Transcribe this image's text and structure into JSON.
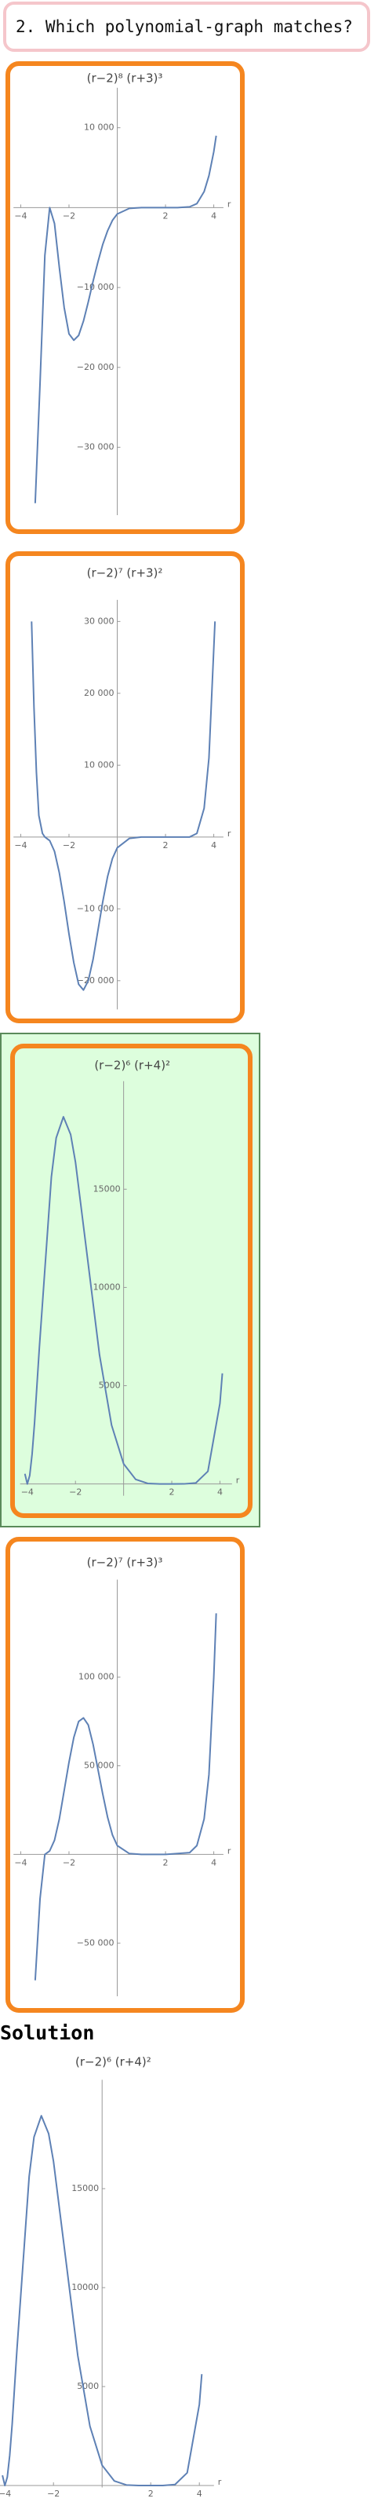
{
  "question": "2. Which polynomial-graph matches?",
  "solution_label": "Solution",
  "chart_data": [
    {
      "type": "line",
      "title": "(r−2)⁸ (r+3)³",
      "xlabel": "r",
      "color": "#5e81b5",
      "x": [
        -3.4,
        -3.2,
        -3.0,
        -2.8,
        -2.6,
        -2.4,
        -2.2,
        -2.0,
        -1.8,
        -1.6,
        -1.4,
        -1.2,
        -1.0,
        -0.8,
        -0.6,
        -0.4,
        -0.2,
        0,
        0.5,
        1,
        1.5,
        2,
        2.5,
        3,
        3.3,
        3.6,
        3.8,
        4.0,
        4.1
      ],
      "values": [
        -37000,
        -22000,
        -6000,
        0,
        -2000,
        -7500,
        -12500,
        -15800,
        -16600,
        -16000,
        -14200,
        -11800,
        -9200,
        -6800,
        -4600,
        -2900,
        -1600,
        -800,
        -100,
        0,
        0,
        0,
        0,
        100,
        500,
        2000,
        4000,
        7000,
        9000
      ],
      "xlim": [
        -4.3,
        4.4
      ],
      "ylim": [
        -38500,
        15000
      ],
      "xticks": [
        {
          "value": -4,
          "label": "−4"
        },
        {
          "value": -2,
          "label": "−2"
        },
        2,
        4
      ],
      "yticks": [
        {
          "value": -30000,
          "label": "−30 000"
        },
        {
          "value": -20000,
          "label": "−20 000"
        },
        {
          "value": -10000,
          "label": "−10 000"
        },
        {
          "value": 10000,
          "label": "10 000"
        }
      ]
    },
    {
      "type": "line",
      "title": "(r−2)⁷ (r+3)²",
      "xlabel": "r",
      "color": "#5e81b5",
      "x": [
        -3.55,
        -3.45,
        -3.35,
        -3.25,
        -3.1,
        -3.0,
        -2.8,
        -2.6,
        -2.4,
        -2.2,
        -2.0,
        -1.8,
        -1.6,
        -1.4,
        -1.2,
        -1.0,
        -0.8,
        -0.6,
        -0.4,
        -0.2,
        0,
        0.5,
        1,
        2,
        3,
        3.3,
        3.6,
        3.8,
        4.05
      ],
      "values": [
        30000,
        18000,
        9000,
        3000,
        500,
        0,
        -500,
        -2000,
        -5000,
        -9000,
        -13500,
        -17500,
        -20500,
        -21300,
        -20000,
        -17000,
        -13000,
        -9000,
        -5500,
        -3000,
        -1500,
        -200,
        0,
        0,
        0,
        500,
        4000,
        11000,
        30000
      ],
      "xlim": [
        -4.3,
        4.4
      ],
      "ylim": [
        -24000,
        33000
      ],
      "xticks": [
        {
          "value": -4,
          "label": "−4"
        },
        {
          "value": -2,
          "label": "−2"
        },
        2,
        4
      ],
      "yticks": [
        {
          "value": -20000,
          "label": "−20 000"
        },
        {
          "value": -10000,
          "label": "−10 000"
        },
        {
          "value": 10000,
          "label": "10 000"
        },
        {
          "value": 20000,
          "label": "20 000"
        },
        {
          "value": 30000,
          "label": "30 000"
        }
      ]
    },
    {
      "type": "line",
      "title": "(r−2)⁶ (r+4)²",
      "xlabel": "r",
      "color": "#5e81b5",
      "x": [
        -4.1,
        -4.0,
        -3.9,
        -3.8,
        -3.7,
        -3.5,
        -3.0,
        -2.8,
        -2.5,
        -2.2,
        -2.0,
        -1.5,
        -1.0,
        -0.5,
        0,
        0.5,
        1,
        1.5,
        2,
        2.5,
        3,
        3.5,
        4,
        4.1
      ],
      "values": [
        515,
        0,
        422,
        1523,
        3087,
        6921,
        15625,
        17613,
        18684,
        17785,
        16384,
        11489,
        6561,
        2991,
        1024,
        231,
        25,
        0,
        0,
        1,
        49,
        641,
        4096,
        5627
      ],
      "xlim": [
        -4.3,
        4.5
      ],
      "ylim": [
        -600,
        20500
      ],
      "xticks": [
        {
          "value": -4,
          "label": "−4"
        },
        {
          "value": -2,
          "label": "−2"
        },
        2,
        4
      ],
      "yticks": [
        5000,
        10000,
        15000
      ]
    },
    {
      "type": "line",
      "title": "(r−2)⁷ (r+3)³",
      "xlabel": "r",
      "color": "#5e81b5",
      "x": [
        -3.4,
        -3.2,
        -3.0,
        -2.8,
        -2.6,
        -2.4,
        -2.2,
        -2.0,
        -1.8,
        -1.6,
        -1.4,
        -1.2,
        -1.0,
        -0.8,
        -0.6,
        -0.4,
        -0.2,
        0,
        0.5,
        1,
        2,
        3,
        3.3,
        3.6,
        3.8,
        4.0,
        4.1
      ],
      "values": [
        -71000,
        -25000,
        0,
        2000,
        8000,
        20000,
        36000,
        52000,
        66000,
        75000,
        77000,
        73000,
        62000,
        48000,
        34000,
        21000,
        11000,
        5000,
        500,
        0,
        0,
        1000,
        5000,
        20000,
        45000,
        100000,
        136000
      ],
      "xlim": [
        -4.3,
        4.4
      ],
      "ylim": [
        -80000,
        155000
      ],
      "xticks": [
        {
          "value": -4,
          "label": "−4"
        },
        {
          "value": -2,
          "label": "−2"
        },
        2,
        4
      ],
      "yticks": [
        {
          "value": -50000,
          "label": "−50 000"
        },
        {
          "value": 50000,
          "label": "50 000"
        },
        {
          "value": 100000,
          "label": "100 000"
        }
      ]
    },
    {
      "type": "line",
      "title": "(r−2)⁶ (r+4)²",
      "xlabel": "r",
      "color": "#5e81b5",
      "x": [
        -4.1,
        -4.0,
        -3.9,
        -3.8,
        -3.7,
        -3.5,
        -3.0,
        -2.8,
        -2.5,
        -2.2,
        -2.0,
        -1.5,
        -1.0,
        -0.5,
        0,
        0.5,
        1,
        1.5,
        2,
        2.5,
        3,
        3.5,
        4,
        4.1
      ],
      "values": [
        515,
        0,
        422,
        1523,
        3087,
        6921,
        15625,
        17613,
        18684,
        17785,
        16384,
        11489,
        6561,
        2991,
        1024,
        231,
        25,
        0,
        0,
        1,
        49,
        641,
        4096,
        5627
      ],
      "xlim": [
        -4.2,
        4.6
      ],
      "ylim": [
        -100,
        20500
      ],
      "xticks": [
        {
          "value": -4,
          "label": "−4"
        },
        {
          "value": -2,
          "label": "−2"
        },
        2,
        4
      ],
      "yticks": [
        5000,
        10000,
        15000
      ]
    }
  ]
}
